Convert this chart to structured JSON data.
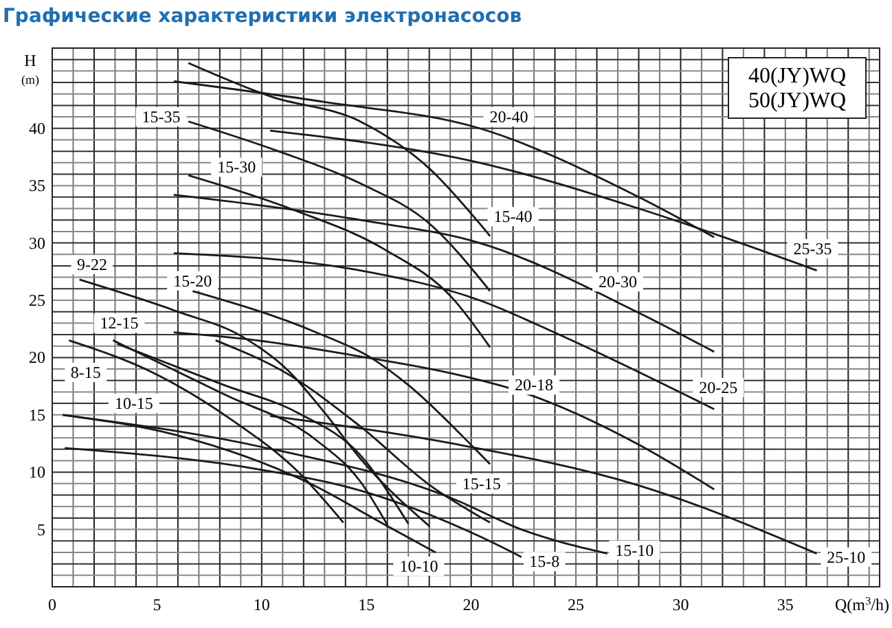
{
  "chart_data": {
    "type": "line",
    "title": "Графические характеристики электронасосов",
    "xlabel": "Q(m$^{3}$/h)",
    "ylabel": "H (m)",
    "xlim": [
      0,
      39.5
    ],
    "ylim": [
      0,
      47
    ],
    "xticks": [
      0,
      5,
      10,
      15,
      20,
      25,
      30,
      35
    ],
    "yticks": [
      5,
      10,
      15,
      20,
      25,
      30,
      35,
      40
    ],
    "grid": true,
    "marker": "none",
    "line_style": "solid",
    "series": [
      {
        "color": "#1a1a1a",
        "x": [
          6.5,
          10.4,
          14.7,
          18,
          20.4,
          20.9
        ],
        "values": [
          45.7,
          42.8,
          40.6,
          36.5,
          31.7,
          30.6
        ]
      },
      {
        "color": "#1a1a1a",
        "x": [
          5.8,
          13,
          20.4,
          27.9,
          31.6
        ],
        "values": [
          44.1,
          42.3,
          40,
          34.1,
          30.5
        ]
      },
      {
        "color": "#1a1a1a",
        "x": [
          10.4,
          20.4,
          28,
          36.5
        ],
        "values": [
          39.8,
          37,
          33,
          27.6
        ]
      },
      {
        "color": "#1a1a1a",
        "x": [
          6.5,
          10.8,
          14.7,
          18,
          20.9
        ],
        "values": [
          40.6,
          38,
          35.2,
          31.7,
          25.8
        ]
      },
      {
        "color": "#1a1a1a",
        "x": [
          6.5,
          11.5,
          15.9,
          19.1,
          20.9
        ],
        "values": [
          35.9,
          32.9,
          29.4,
          25.2,
          20.9
        ]
      },
      {
        "color": "#1a1a1a",
        "x": [
          5.8,
          14.7,
          20.4,
          27.9,
          31.6
        ],
        "values": [
          34.2,
          32,
          30,
          24,
          20.5
        ]
      },
      {
        "color": "#1a1a1a",
        "x": [
          5.8,
          14.7,
          20.4,
          24.2,
          31.6
        ],
        "values": [
          29.1,
          27.6,
          25,
          22,
          15.5
        ]
      },
      {
        "color": "#1a1a1a",
        "x": [
          6.7,
          12.6,
          15.2,
          17,
          20.2,
          20.9
        ],
        "values": [
          25.8,
          22.2,
          20,
          17.6,
          12,
          10.7
        ]
      },
      {
        "color": "#1a1a1a",
        "x": [
          1.3,
          6,
          9.1,
          11.3,
          13,
          14.7,
          18
        ],
        "values": [
          26.8,
          24,
          21.8,
          18.8,
          15.2,
          11.2,
          5.3
        ]
      },
      {
        "color": "#1a1a1a",
        "x": [
          5.8,
          9.3,
          15,
          19.1,
          22.4,
          27.9,
          31.6
        ],
        "values": [
          22.2,
          21.6,
          20,
          18.6,
          17,
          12.5,
          8.5
        ]
      },
      {
        "color": "#1a1a1a",
        "x": [
          0.8,
          4.9,
          8.7,
          11.7,
          13.9
        ],
        "values": [
          21.5,
          18.6,
          14.4,
          10.1,
          5.6
        ]
      },
      {
        "color": "#1a1a1a",
        "x": [
          2.9,
          8.2,
          12.6,
          14.7,
          16
        ],
        "values": [
          21.5,
          16.8,
          12.8,
          9.2,
          5.4
        ]
      },
      {
        "color": "#1a1a1a",
        "x": [
          3.1,
          8.2,
          11.7,
          14.7,
          17
        ],
        "values": [
          21.2,
          17.6,
          15.2,
          11.5,
          5.5
        ]
      },
      {
        "color": "#1a1a1a",
        "x": [
          7.8,
          11.3,
          14.7,
          18,
          20.9
        ],
        "values": [
          21.5,
          18.5,
          14,
          8.9,
          5.6
        ]
      },
      {
        "color": "#1a1a1a",
        "x": [
          0.5,
          10,
          19.1,
          22.4,
          26.5
        ],
        "values": [
          15,
          12.2,
          7.7,
          5,
          2.9
        ]
      },
      {
        "color": "#1a1a1a",
        "x": [
          0.5,
          6,
          12.1,
          15.9,
          18.3
        ],
        "values": [
          15,
          13.2,
          9.2,
          5.4,
          3
        ]
      },
      {
        "color": "#1a1a1a",
        "x": [
          0.6,
          10,
          14.7,
          20.4,
          22.4
        ],
        "values": [
          12.1,
          10.2,
          8.4,
          4.4,
          2.6
        ]
      },
      {
        "color": "#1a1a1a",
        "x": [
          10.4,
          19.1,
          27.9,
          36.5
        ],
        "values": [
          14.9,
          12.5,
          8.9,
          2.9
        ]
      }
    ],
    "annotations": [
      "40(JY)WQ",
      "50(JY)WQ",
      {
        "text": "15-40",
        "x": 22,
        "y": 32.3
      },
      {
        "text": "20-40",
        "x": 21.8,
        "y": 41
      },
      {
        "text": "25-35",
        "x": 36.3,
        "y": 29.5
      },
      {
        "text": "15-35",
        "x": 5.2,
        "y": 41
      },
      {
        "text": "15-30",
        "x": 8.8,
        "y": 36.6
      },
      {
        "text": "20-30",
        "x": 27,
        "y": 26.6
      },
      {
        "text": "20-25",
        "x": 31.8,
        "y": 17.4
      },
      {
        "text": "15-20",
        "x": 6.7,
        "y": 26.7
      },
      {
        "text": "9-22",
        "x": 1.9,
        "y": 28.1
      },
      {
        "text": "20-18",
        "x": 23,
        "y": 17.6
      },
      {
        "text": "8-15",
        "x": 1.6,
        "y": 18.7
      },
      {
        "text": "12-15",
        "x": 3.2,
        "y": 23
      },
      {
        "text": "10-15",
        "x": 3.9,
        "y": 16
      },
      {
        "text": "15-15",
        "x": 20.5,
        "y": 9
      },
      {
        "text": "15-10",
        "x": 27.8,
        "y": 3.2
      },
      {
        "text": "10-10",
        "x": 17.5,
        "y": 1.8
      },
      {
        "text": "15-8",
        "x": 23.5,
        "y": 2.2
      },
      {
        "text": "25-10",
        "x": 37.9,
        "y": 2.6
      }
    ]
  }
}
